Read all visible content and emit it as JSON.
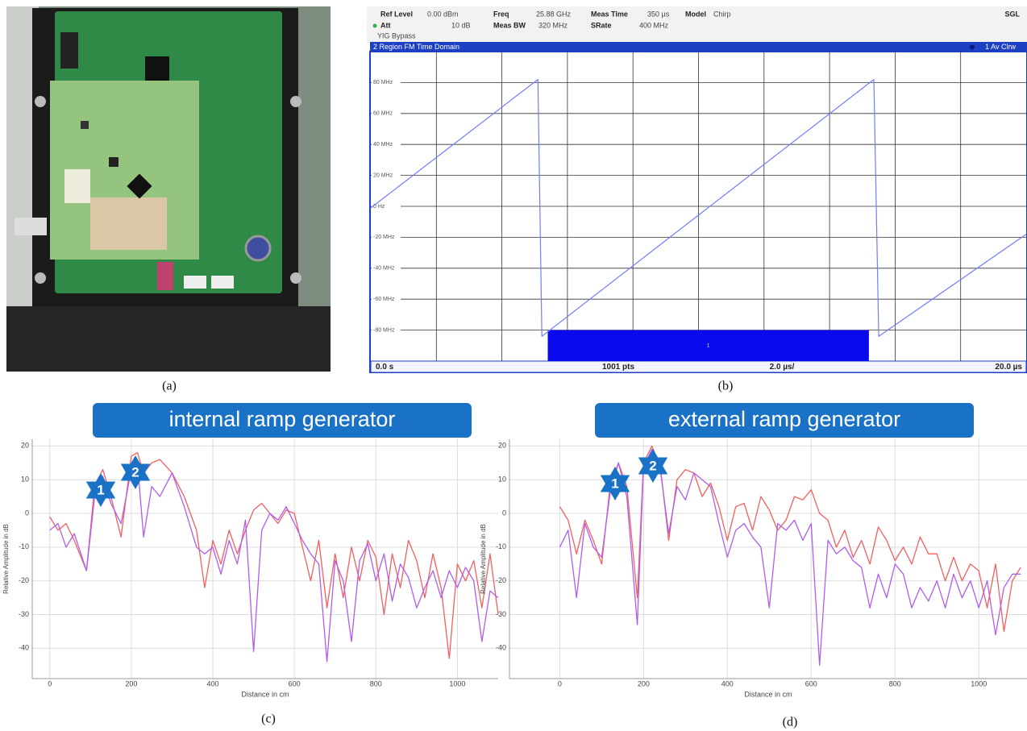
{
  "captions": [
    "(a)",
    "(b)",
    "(c)",
    "(d)"
  ],
  "analyzer_header": {
    "ref_level_label": "Ref Level",
    "ref_level": "0.00 dBm",
    "att_label": "Att",
    "att": "10 dB",
    "freq_label": "Freq",
    "freq": "25.88 GHz",
    "meas_bw_label": "Meas BW",
    "meas_bw": "320 MHz",
    "meas_time_label": "Meas Time",
    "meas_time": "350 µs",
    "srate_label": "SRate",
    "srate": "400 MHz",
    "model_label": "Model",
    "model": "Chirp",
    "mode": "SGL",
    "yig": "YIG Bypass"
  },
  "chart_data": [
    {
      "type": "line",
      "title": "2 Region FM Time Domain",
      "trace_label": "1 Av Clrw",
      "x": [
        0,
        5.1,
        5.22,
        15.35,
        15.5,
        20
      ],
      "series": [
        {
          "color": "#6f7dff",
          "values": [
            -1,
            82,
            -84,
            82,
            -84,
            -18
          ]
        }
      ],
      "xlim": [
        0,
        20
      ],
      "xgrid": [
        2,
        4,
        6,
        8,
        10,
        12,
        14,
        16,
        18
      ],
      "ylim": [
        -100,
        100
      ],
      "yticks": [
        {
          "value": 80,
          "label": "80 MHz"
        },
        {
          "value": 60,
          "label": "60 MHz"
        },
        {
          "value": 40,
          "label": "40 MHz"
        },
        {
          "value": 20,
          "label": "20 MHz"
        },
        {
          "value": 0,
          "label": "0 Hz"
        },
        {
          "value": -20,
          "label": "-20 MHz"
        },
        {
          "value": -40,
          "label": "-40 MHz"
        },
        {
          "value": -60,
          "label": "-60 MHz"
        },
        {
          "value": -80,
          "label": "-80 MHz"
        }
      ],
      "x_labels": {
        "start": "0.0 s",
        "points": "1001 pts",
        "per_div": "2.0 µs/",
        "end": "20.0 µs"
      },
      "region": {
        "label": "1",
        "x": [
          5.4,
          15.2
        ],
        "y": [
          -100,
          -80
        ],
        "color": "#0a0aee"
      },
      "grid": true
    },
    {
      "type": "line",
      "title": "internal ramp generator",
      "x_label": "Distance in cm",
      "y_label": "Relative Amplitude in dB",
      "markers": [
        "1",
        "2"
      ],
      "xlim": [
        -43,
        1100
      ],
      "xticks": [
        0,
        200,
        400,
        600,
        800,
        1000
      ],
      "ylim": [
        -49,
        22
      ],
      "yticks": [
        -40,
        -30,
        -20,
        -10,
        0,
        10,
        20
      ],
      "grid": true,
      "x": [
        0,
        20,
        40,
        60,
        90,
        110,
        130,
        150,
        175,
        200,
        215,
        230,
        250,
        270,
        300,
        330,
        360,
        380,
        400,
        420,
        440,
        460,
        480,
        500,
        520,
        540,
        560,
        580,
        600,
        620,
        640,
        660,
        680,
        700,
        720,
        740,
        760,
        780,
        800,
        820,
        840,
        860,
        880,
        900,
        920,
        940,
        960,
        980,
        1000,
        1020,
        1040,
        1060,
        1080,
        1100
      ],
      "series": [
        {
          "color": "#f0605f",
          "values": [
            -1,
            -5,
            -3,
            -8,
            -17,
            8,
            13,
            5,
            -7,
            17,
            18,
            12,
            15,
            16,
            12,
            5,
            -5,
            -22,
            -8,
            -15,
            -5,
            -12,
            -5,
            1,
            3,
            0,
            -3,
            1,
            0,
            -10,
            -20,
            -8,
            -28,
            -12,
            -25,
            -10,
            -20,
            -8,
            -13,
            -30,
            -12,
            -22,
            -8,
            -14,
            -25,
            -12,
            -22,
            -43,
            -15,
            -20,
            -14,
            -28,
            -12,
            -30
          ]
        },
        {
          "color": "#b05cf0",
          "values": [
            -5,
            -3,
            -10,
            -6,
            -17,
            5,
            11,
            3,
            -3,
            13,
            15,
            -7,
            8,
            5,
            12,
            2,
            -10,
            -12,
            -10,
            -18,
            -8,
            -15,
            -2,
            -41,
            -5,
            0,
            -2,
            2,
            -3,
            -8,
            -12,
            -15,
            -44,
            -14,
            -20,
            -38,
            -14,
            -9,
            -20,
            -12,
            -26,
            -15,
            -19,
            -28,
            -22,
            -17,
            -25,
            -17,
            -22,
            -16,
            -20,
            -38,
            -23,
            -25
          ]
        }
      ]
    },
    {
      "type": "line",
      "title": "external ramp generator",
      "x_label": "Distance in cm",
      "y_label": "Relative Amplitude in dB",
      "markers": [
        "1",
        "2"
      ],
      "xlim": [
        -120,
        1115
      ],
      "xticks": [
        0,
        200,
        400,
        600,
        800,
        1000
      ],
      "ylim": [
        -49,
        22
      ],
      "yticks": [
        -40,
        -30,
        -20,
        -10,
        0,
        10,
        20
      ],
      "grid": true,
      "x": [
        0,
        20,
        40,
        60,
        80,
        100,
        120,
        140,
        160,
        185,
        200,
        220,
        240,
        260,
        280,
        300,
        320,
        340,
        360,
        380,
        400,
        420,
        440,
        460,
        480,
        500,
        520,
        540,
        560,
        580,
        600,
        620,
        640,
        660,
        680,
        700,
        720,
        740,
        760,
        780,
        800,
        820,
        840,
        860,
        880,
        900,
        920,
        940,
        960,
        980,
        1000,
        1020,
        1040,
        1060,
        1080,
        1100
      ],
      "series": [
        {
          "color": "#f0605f",
          "values": [
            2,
            -2,
            -12,
            -2,
            -8,
            -15,
            8,
            15,
            8,
            -25,
            15,
            20,
            14,
            -8,
            10,
            13,
            12,
            5,
            9,
            2,
            -8,
            2,
            3,
            -5,
            5,
            1,
            -5,
            -2,
            5,
            4,
            7,
            0,
            -2,
            -10,
            -5,
            -13,
            -8,
            -15,
            -4,
            -8,
            -14,
            -10,
            -15,
            -7,
            -12,
            -12,
            -20,
            -13,
            -20,
            -15,
            -17,
            -28,
            -15,
            -35,
            -20,
            -16
          ]
        },
        {
          "color": "#b05cf0",
          "values": [
            -10,
            -5,
            -25,
            -3,
            -10,
            -13,
            6,
            15,
            5,
            -33,
            14,
            19,
            13,
            -6,
            8,
            4,
            12,
            10,
            8,
            -3,
            -13,
            -5,
            -3,
            -7,
            -10,
            -28,
            -3,
            -5,
            -2,
            -8,
            -3,
            -45,
            -8,
            -12,
            -10,
            -14,
            -16,
            -28,
            -18,
            -25,
            -15,
            -18,
            -28,
            -22,
            -26,
            -20,
            -28,
            -18,
            -25,
            -20,
            -28,
            -20,
            -36,
            -22,
            -18,
            -18
          ]
        }
      ]
    }
  ]
}
